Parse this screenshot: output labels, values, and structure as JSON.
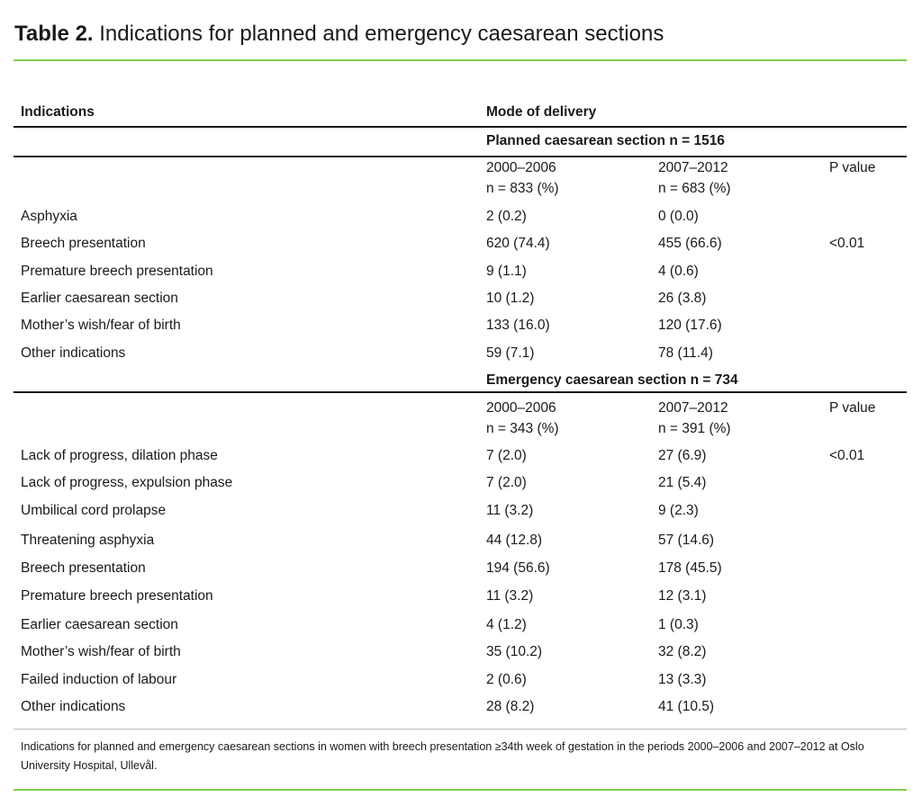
{
  "title": {
    "label": "Table 2.",
    "text": "Indications for planned and emergency caesarean sections"
  },
  "header": {
    "indications": "Indications",
    "mode": "Mode of delivery"
  },
  "sections": [
    {
      "heading": "Planned caesarean section  n = 1516",
      "col1": [
        "2000–2006",
        "n = 833 (%)"
      ],
      "col2": [
        "2007–2012",
        "n = 683 (%)"
      ],
      "pvalue_label": "P value",
      "rows": [
        {
          "label": "Asphyxia",
          "a": "2 (0.2)",
          "b": "0 (0.0)",
          "p": ""
        },
        {
          "label": "Breech presentation",
          "a": "620 (74.4)",
          "b": "455 (66.6)",
          "p": "<0.01"
        },
        {
          "label": "Premature breech presentation",
          "a": "9 (1.1)",
          "b": "4 (0.6)",
          "p": ""
        },
        {
          "label": "Earlier caesarean section",
          "a": "10 (1.2)",
          "b": "26 (3.8)",
          "p": ""
        },
        {
          "label": "Mother’s wish/fear of birth",
          "a": "133 (16.0)",
          "b": "120 (17.6)",
          "p": ""
        },
        {
          "label": "Other indications",
          "a": "59 (7.1)",
          "b": "78 (11.4)",
          "p": ""
        }
      ]
    },
    {
      "heading": "Emergency caesarean section n = 734",
      "col1": [
        "2000–2006",
        "n = 343 (%)"
      ],
      "col2": [
        "2007–2012",
        "n = 391 (%)"
      ],
      "pvalue_label": "P value",
      "rows": [
        {
          "label": "Lack of progress, dilation phase",
          "a": "7 (2.0)",
          "b": "27 (6.9)",
          "p": "<0.01"
        },
        {
          "label": "Lack of progress, expulsion phase",
          "a": "7 (2.0)",
          "b": "21 (5.4)",
          "p": ""
        },
        {
          "label": "Umbilical cord prolapse",
          "a": "11 (3.2)",
          "b": "9 (2.3)",
          "p": ""
        },
        {
          "label": "Threatening asphyxia",
          "a": "44 (12.8)",
          "b": "57 (14.6)",
          "p": ""
        },
        {
          "label": "Breech presentation",
          "a": "194 (56.6)",
          "b": "178 (45.5)",
          "p": ""
        },
        {
          "label": "Premature breech presentation",
          "a": "11 (3.2)",
          "b": "12 (3.1)",
          "p": ""
        },
        {
          "label": "Earlier caesarean section",
          "a": "4 (1.2)",
          "b": "1 (0.3)",
          "p": ""
        },
        {
          "label": "Mother’s wish/fear of birth",
          "a": "35 (10.2)",
          "b": "32 (8.2)",
          "p": ""
        },
        {
          "label": "Failed induction of labour",
          "a": "2 (0.6)",
          "b": "13 (3.3)",
          "p": ""
        },
        {
          "label": "Other indications",
          "a": "28 (8.2)",
          "b": "41 (10.5)",
          "p": ""
        }
      ]
    }
  ],
  "footnote": "Indications for planned and emergency caesarean sections in women with breech presentation ≥34th week of gestation in the periods 2000–2006 and 2007–2012 at Oslo University Hospital, Ullevål.",
  "colors": {
    "accent_rule": "#7ccf4f",
    "text": "#1a1a1a"
  }
}
